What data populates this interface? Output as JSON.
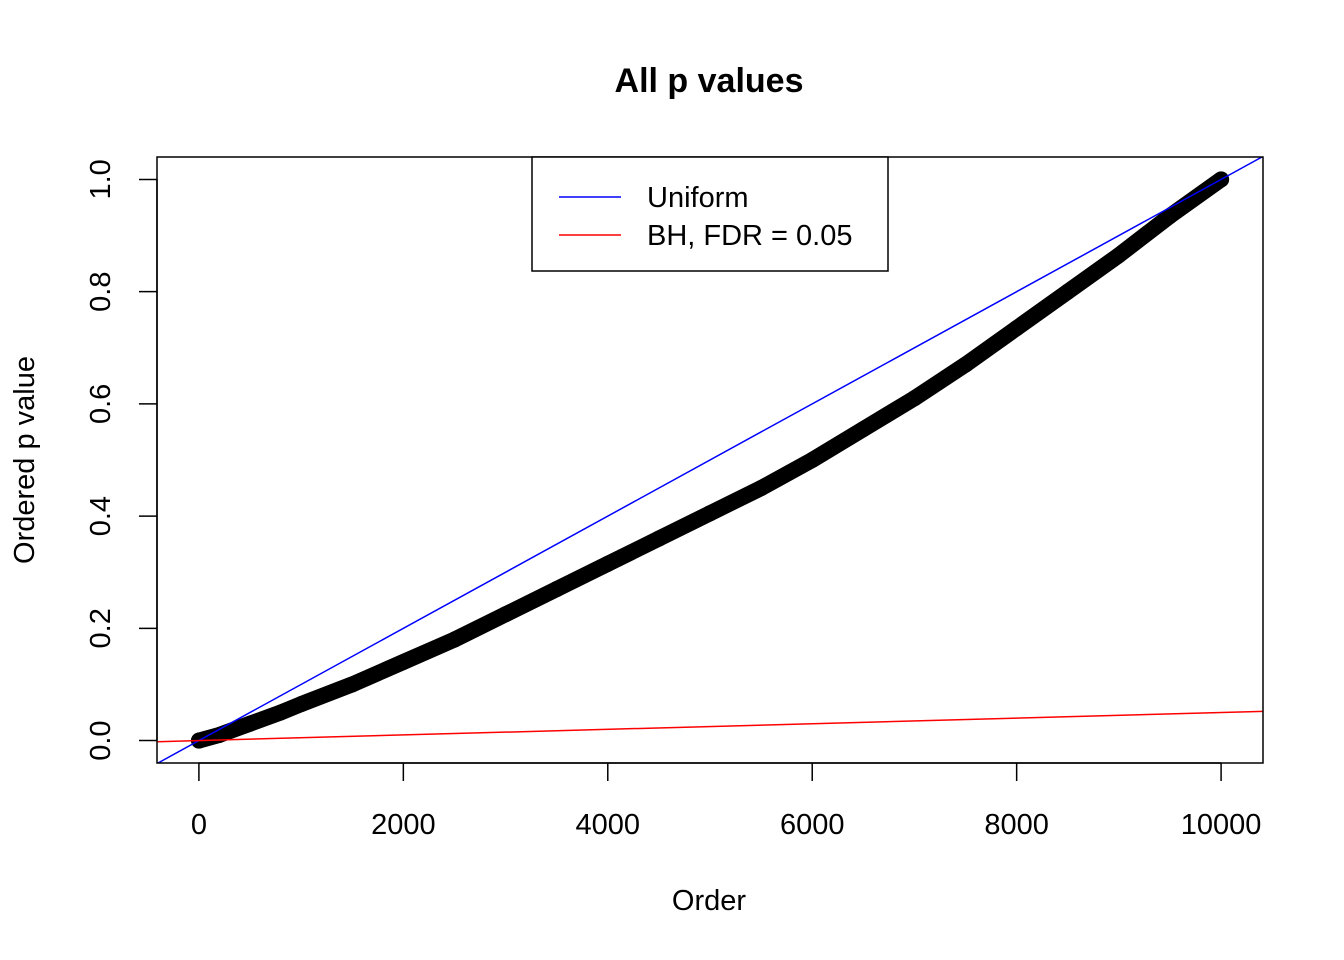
{
  "chart_data": {
    "type": "scatter",
    "title": "All p values",
    "xlabel": "Order",
    "ylabel": "Ordered p value",
    "xlim": [
      -410,
      10410
    ],
    "ylim": [
      -0.04,
      1.04
    ],
    "x_ticks": [
      0,
      2000,
      4000,
      6000,
      8000,
      10000
    ],
    "x_tick_labels": [
      "0",
      "2000",
      "4000",
      "6000",
      "8000",
      "10000"
    ],
    "y_ticks": [
      0.0,
      0.2,
      0.4,
      0.6,
      0.8,
      1.0
    ],
    "y_tick_labels": [
      "0.0",
      "0.2",
      "0.4",
      "0.6",
      "0.8",
      "1.0"
    ],
    "grid": false,
    "legend_position": "top-center",
    "series": [
      {
        "kind": "points",
        "color": "#000000",
        "x": [
          1,
          200,
          500,
          800,
          1000,
          1500,
          2000,
          2500,
          3000,
          3500,
          4000,
          4500,
          5000,
          5500,
          6000,
          6500,
          7000,
          7500,
          8000,
          8500,
          9000,
          9500,
          10000
        ],
        "y": [
          0.0,
          0.01,
          0.03,
          0.05,
          0.065,
          0.1,
          0.14,
          0.18,
          0.225,
          0.27,
          0.315,
          0.36,
          0.405,
          0.45,
          0.5,
          0.555,
          0.61,
          0.67,
          0.735,
          0.8,
          0.865,
          0.935,
          1.0
        ]
      },
      {
        "kind": "line",
        "name": "Uniform",
        "color": "#0000ff",
        "intercept": 0.0,
        "slope": 0.0001
      },
      {
        "kind": "line",
        "name": "BH, FDR = 0.05",
        "color": "#ff0000",
        "intercept": 0.0,
        "slope": 5e-06
      }
    ],
    "legend": [
      {
        "label": "Uniform",
        "color": "#0000ff"
      },
      {
        "label": "BH, FDR = 0.05",
        "color": "#ff0000"
      }
    ]
  }
}
